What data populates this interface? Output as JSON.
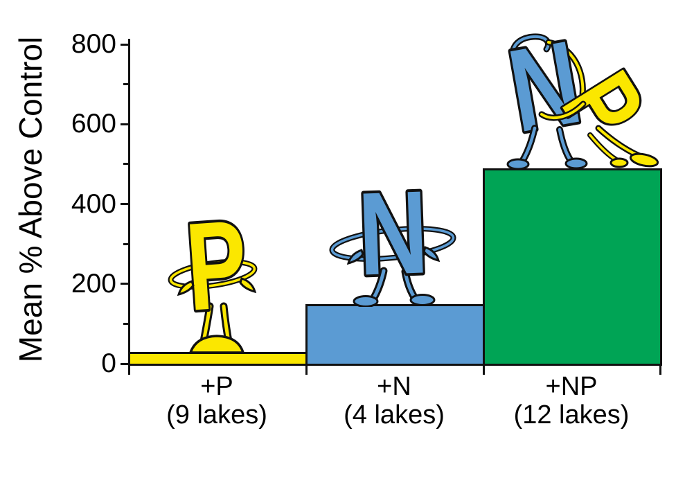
{
  "chart_data": {
    "type": "bar",
    "title": "",
    "ylabel": "Mean % Above Control",
    "xlabel": "",
    "categories": [
      "+P",
      "+N",
      "+NP"
    ],
    "category_sublabels": [
      "(9 lakes)",
      "(4 lakes)",
      "(12 lakes)"
    ],
    "values": [
      30,
      150,
      490
    ],
    "ylim": [
      0,
      800
    ],
    "yticks": [
      0,
      200,
      400,
      600,
      800
    ],
    "yticks_minor": [
      100,
      300,
      500,
      700
    ],
    "grid": false,
    "legend": false,
    "bar_colors": [
      "#FBE700",
      "#5B9BD3",
      "#00A455"
    ],
    "outline_color": "#111111",
    "mascots": {
      "p": {
        "letter": "P",
        "color": "#FBE700",
        "pose": "standing-arms-akimbo"
      },
      "n": {
        "letter": "N",
        "color": "#5B9BD3",
        "pose": "standing-arms-akimbo"
      },
      "np": {
        "letters": [
          "N",
          "P"
        ],
        "colors": [
          "#5B9BD3",
          "#FBE700"
        ],
        "pose": "dancing-dip"
      }
    }
  }
}
